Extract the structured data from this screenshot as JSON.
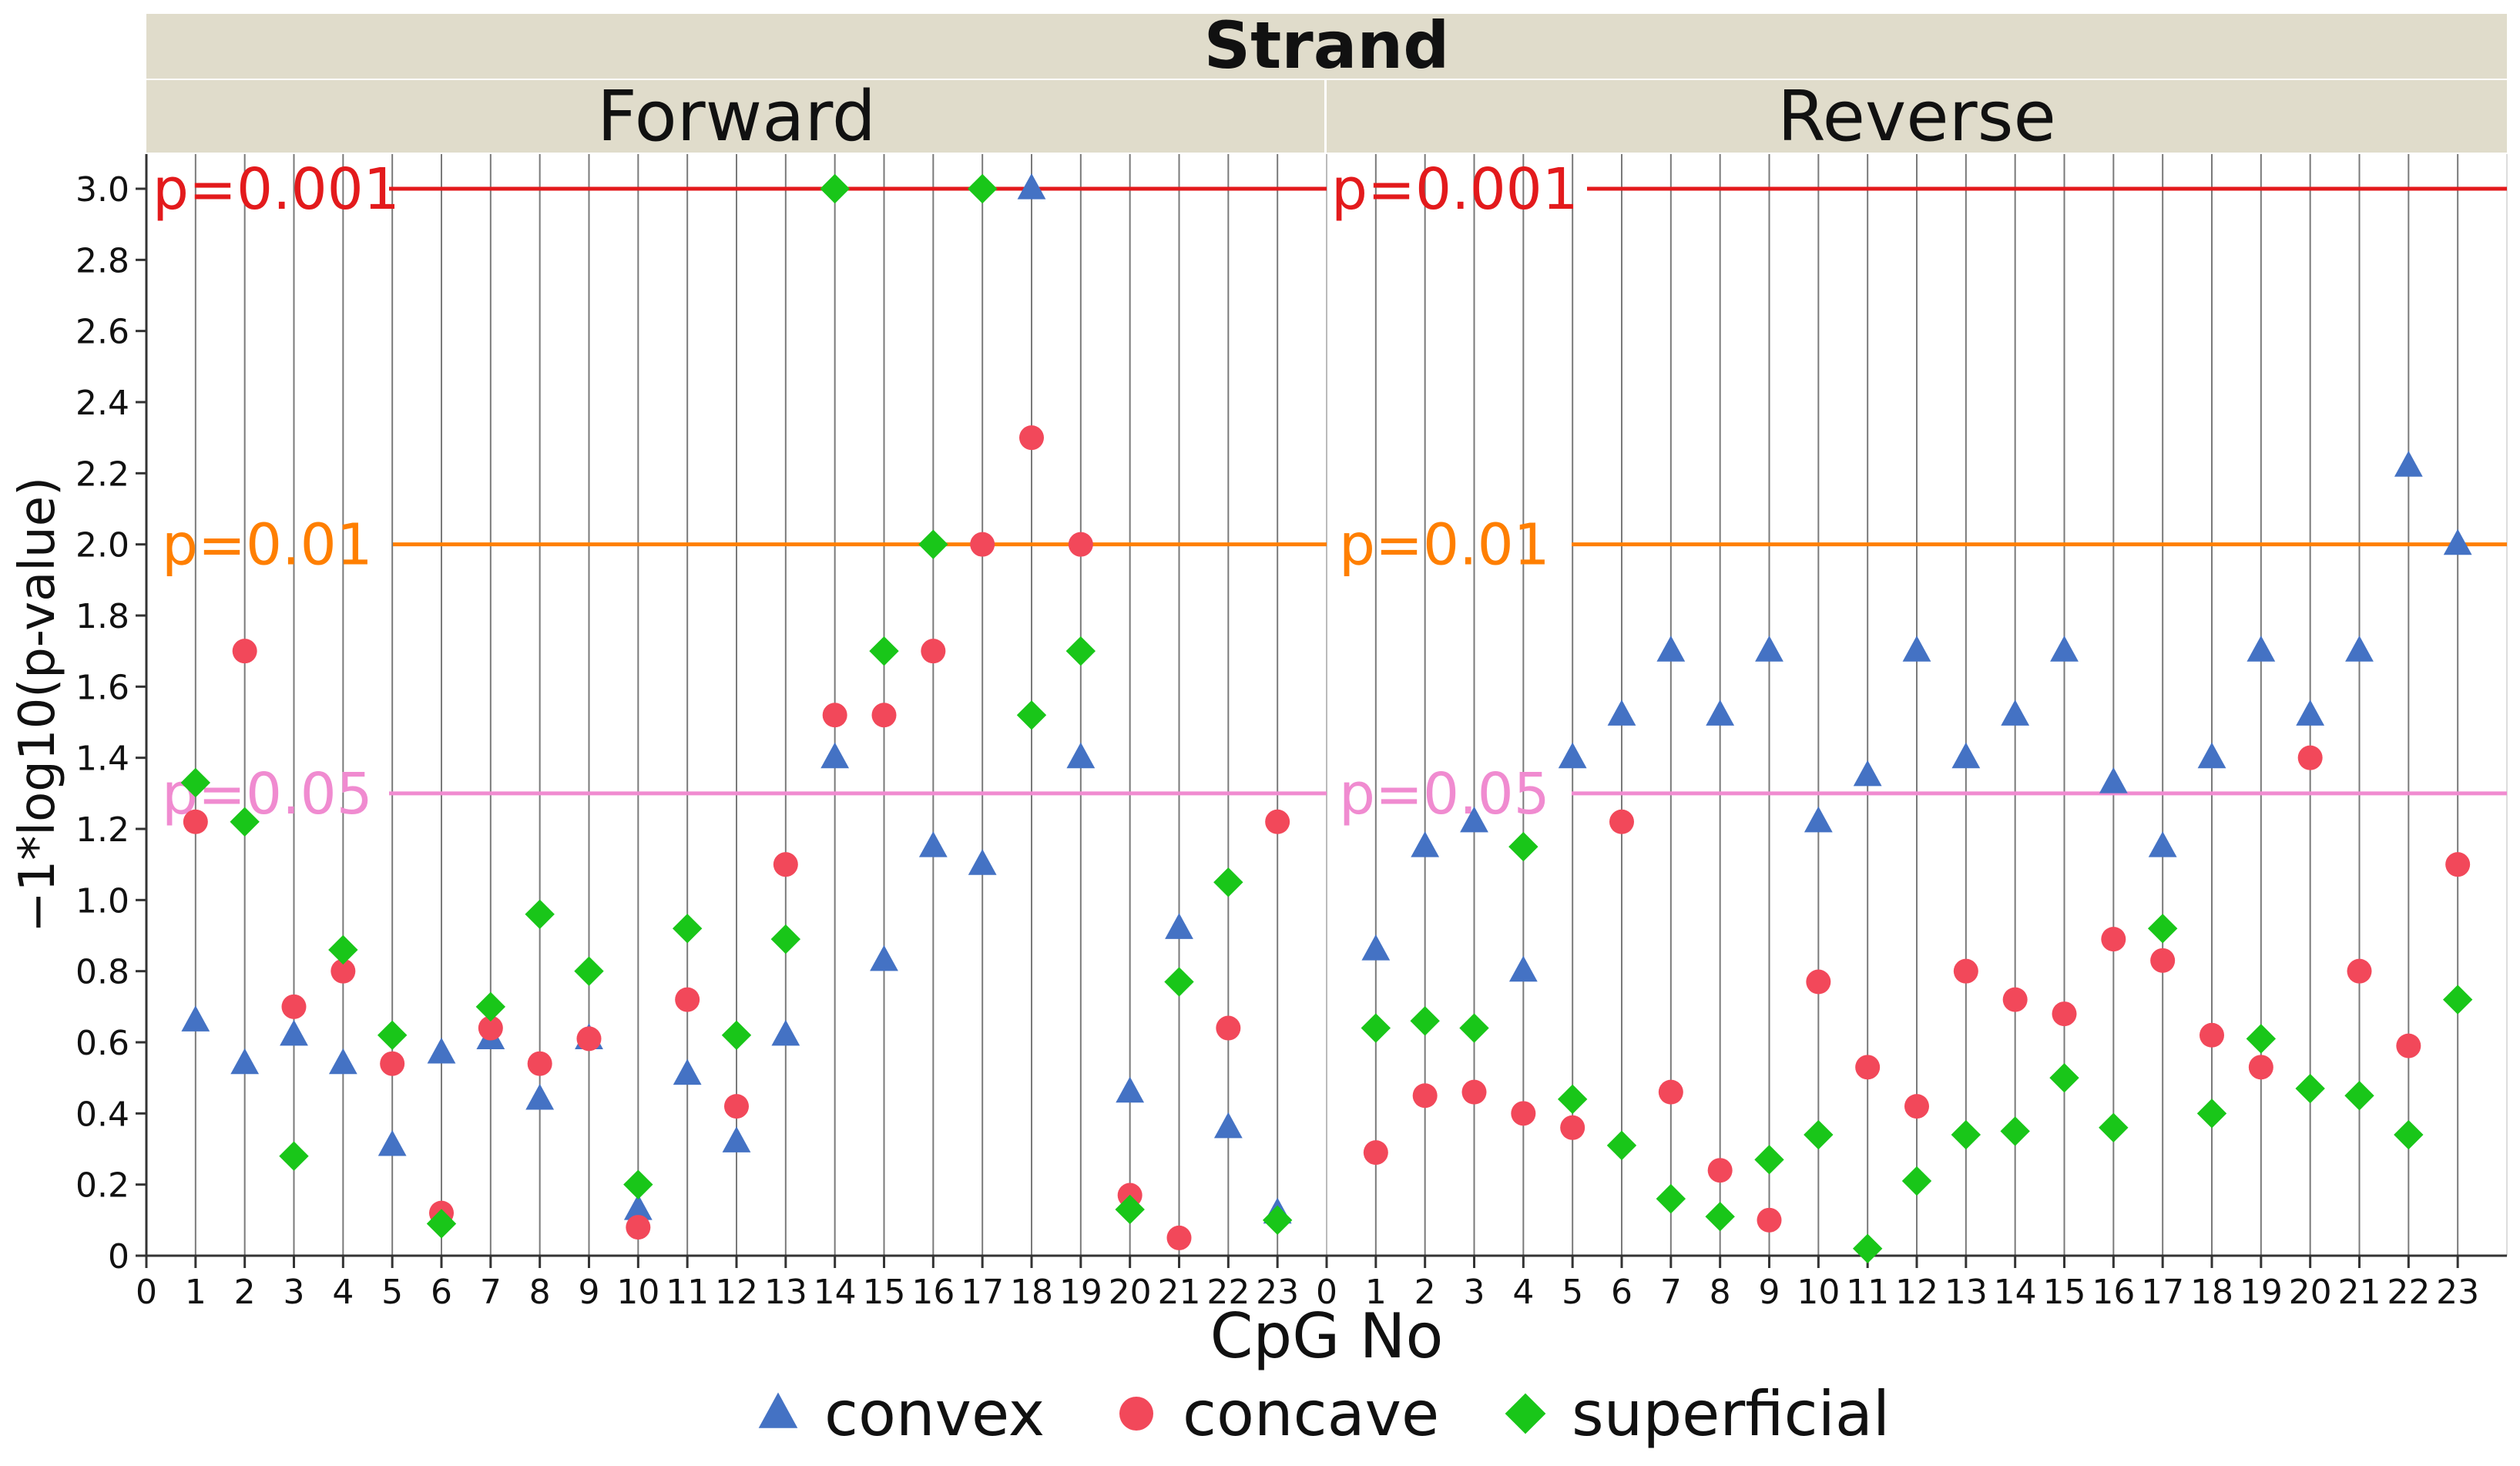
{
  "chart_data": {
    "type": "scatter",
    "strand_title": "Strand",
    "panels": [
      {
        "name": "Forward",
        "series": {
          "convex": [
            [
              1,
              0.66
            ],
            [
              2,
              0.54
            ],
            [
              3,
              0.62
            ],
            [
              4,
              0.54
            ],
            [
              5,
              0.31
            ],
            [
              6,
              0.57
            ],
            [
              7,
              0.61
            ],
            [
              8,
              0.44
            ],
            [
              9,
              0.61
            ],
            [
              10,
              0.13
            ],
            [
              11,
              0.51
            ],
            [
              12,
              0.32
            ],
            [
              13,
              0.62
            ],
            [
              14,
              1.4
            ],
            [
              15,
              0.83
            ],
            [
              16,
              1.15
            ],
            [
              17,
              1.1
            ],
            [
              18,
              3.0
            ],
            [
              19,
              1.4
            ],
            [
              20,
              0.46
            ],
            [
              21,
              0.92
            ],
            [
              22,
              0.36
            ],
            [
              23,
              0.12
            ]
          ],
          "concave": [
            [
              1,
              1.22
            ],
            [
              2,
              1.7
            ],
            [
              3,
              0.7
            ],
            [
              4,
              0.8
            ],
            [
              5,
              0.54
            ],
            [
              6,
              0.12
            ],
            [
              7,
              0.64
            ],
            [
              8,
              0.54
            ],
            [
              9,
              0.61
            ],
            [
              10,
              0.08
            ],
            [
              11,
              0.72
            ],
            [
              12,
              0.42
            ],
            [
              13,
              1.1
            ],
            [
              14,
              1.52
            ],
            [
              15,
              1.52
            ],
            [
              16,
              1.7
            ],
            [
              17,
              2.0
            ],
            [
              18,
              2.3
            ],
            [
              19,
              2.0
            ],
            [
              20,
              0.17
            ],
            [
              21,
              0.05
            ],
            [
              22,
              0.64
            ],
            [
              23,
              1.22
            ]
          ],
          "superficial": [
            [
              1,
              1.33
            ],
            [
              2,
              1.22
            ],
            [
              3,
              0.28
            ],
            [
              4,
              0.86
            ],
            [
              5,
              0.62
            ],
            [
              6,
              0.09
            ],
            [
              7,
              0.7
            ],
            [
              8,
              0.96
            ],
            [
              9,
              0.8
            ],
            [
              10,
              0.2
            ],
            [
              11,
              0.92
            ],
            [
              12,
              0.62
            ],
            [
              13,
              0.89
            ],
            [
              14,
              3.0
            ],
            [
              15,
              1.7
            ],
            [
              16,
              2.0
            ],
            [
              17,
              3.0
            ],
            [
              18,
              1.52
            ],
            [
              19,
              1.7
            ],
            [
              20,
              0.13
            ],
            [
              21,
              0.77
            ],
            [
              22,
              1.05
            ],
            [
              23,
              0.1
            ]
          ]
        }
      },
      {
        "name": "Reverse",
        "series": {
          "convex": [
            [
              1,
              0.86
            ],
            [
              2,
              1.15
            ],
            [
              3,
              1.22
            ],
            [
              4,
              0.8
            ],
            [
              5,
              1.4
            ],
            [
              6,
              1.52
            ],
            [
              7,
              1.7
            ],
            [
              8,
              1.52
            ],
            [
              9,
              1.7
            ],
            [
              10,
              1.22
            ],
            [
              11,
              1.35
            ],
            [
              12,
              1.7
            ],
            [
              13,
              1.4
            ],
            [
              14,
              1.52
            ],
            [
              15,
              1.7
            ],
            [
              16,
              1.33
            ],
            [
              17,
              1.15
            ],
            [
              18,
              1.4
            ],
            [
              19,
              1.7
            ],
            [
              20,
              1.52
            ],
            [
              21,
              1.7
            ],
            [
              22,
              2.22
            ],
            [
              23,
              2.0
            ]
          ],
          "concave": [
            [
              1,
              0.29
            ],
            [
              2,
              0.45
            ],
            [
              3,
              0.46
            ],
            [
              4,
              0.4
            ],
            [
              5,
              0.36
            ],
            [
              6,
              1.22
            ],
            [
              7,
              0.46
            ],
            [
              8,
              0.24
            ],
            [
              9,
              0.1
            ],
            [
              10,
              0.77
            ],
            [
              11,
              0.53
            ],
            [
              12,
              0.42
            ],
            [
              13,
              0.8
            ],
            [
              14,
              0.72
            ],
            [
              15,
              0.68
            ],
            [
              16,
              0.89
            ],
            [
              17,
              0.83
            ],
            [
              18,
              0.62
            ],
            [
              19,
              0.53
            ],
            [
              20,
              1.4
            ],
            [
              21,
              0.8
            ],
            [
              22,
              0.59
            ],
            [
              23,
              1.1
            ]
          ],
          "superficial": [
            [
              1,
              0.64
            ],
            [
              2,
              0.66
            ],
            [
              3,
              0.64
            ],
            [
              4,
              1.15
            ],
            [
              5,
              0.44
            ],
            [
              6,
              0.31
            ],
            [
              7,
              0.16
            ],
            [
              8,
              0.11
            ],
            [
              9,
              0.27
            ],
            [
              10,
              0.34
            ],
            [
              11,
              0.02
            ],
            [
              12,
              0.21
            ],
            [
              13,
              0.34
            ],
            [
              14,
              0.35
            ],
            [
              15,
              0.5
            ],
            [
              16,
              0.36
            ],
            [
              17,
              0.92
            ],
            [
              18,
              0.4
            ],
            [
              19,
              0.61
            ],
            [
              20,
              0.47
            ],
            [
              21,
              0.45
            ],
            [
              22,
              0.34
            ],
            [
              23,
              0.72
            ]
          ]
        }
      }
    ],
    "xlabel": "CpG No",
    "ylabel": "−1*log10(p-value)",
    "xlim": [
      0,
      24
    ],
    "ylim": [
      0,
      3.0
    ],
    "xticks": [
      0,
      1,
      2,
      3,
      4,
      5,
      6,
      7,
      8,
      9,
      10,
      11,
      12,
      13,
      14,
      15,
      16,
      17,
      18,
      19,
      20,
      21,
      22,
      23
    ],
    "yticks": [
      0,
      0.2,
      0.4,
      0.6,
      0.8,
      1.0,
      1.2,
      1.4,
      1.6,
      1.8,
      2.0,
      2.2,
      2.4,
      2.6,
      2.8,
      3.0
    ],
    "ytick_labels": [
      "0",
      "0.2",
      "0.4",
      "0.6",
      "0.8",
      "1.0",
      "1.2",
      "1.4",
      "1.6",
      "1.8",
      "2.0",
      "2.2",
      "2.4",
      "2.6",
      "2.8",
      "3.0"
    ],
    "reference_lines": [
      {
        "label": "p=0.001",
        "value": 3.0,
        "color": "#e31a1c"
      },
      {
        "label": "p=0.01",
        "value": 2.0,
        "color": "#ff7f00"
      },
      {
        "label": "p=0.05",
        "value": 1.3,
        "color": "#f08bd0"
      }
    ],
    "legend": [
      {
        "key": "convex",
        "label": "convex",
        "marker": "triangle",
        "color": "#4472c4"
      },
      {
        "key": "concave",
        "label": "concave",
        "marker": "circle",
        "color": "#f2485a"
      },
      {
        "key": "superficial",
        "label": "superficial",
        "marker": "diamond",
        "color": "#19c619"
      }
    ],
    "legend_position": "bottom-center",
    "grid": true,
    "colors": {
      "header_bg": "#e0dccb",
      "grid": "#7a7a7a",
      "axis": "#333333",
      "text": "#111111"
    }
  }
}
